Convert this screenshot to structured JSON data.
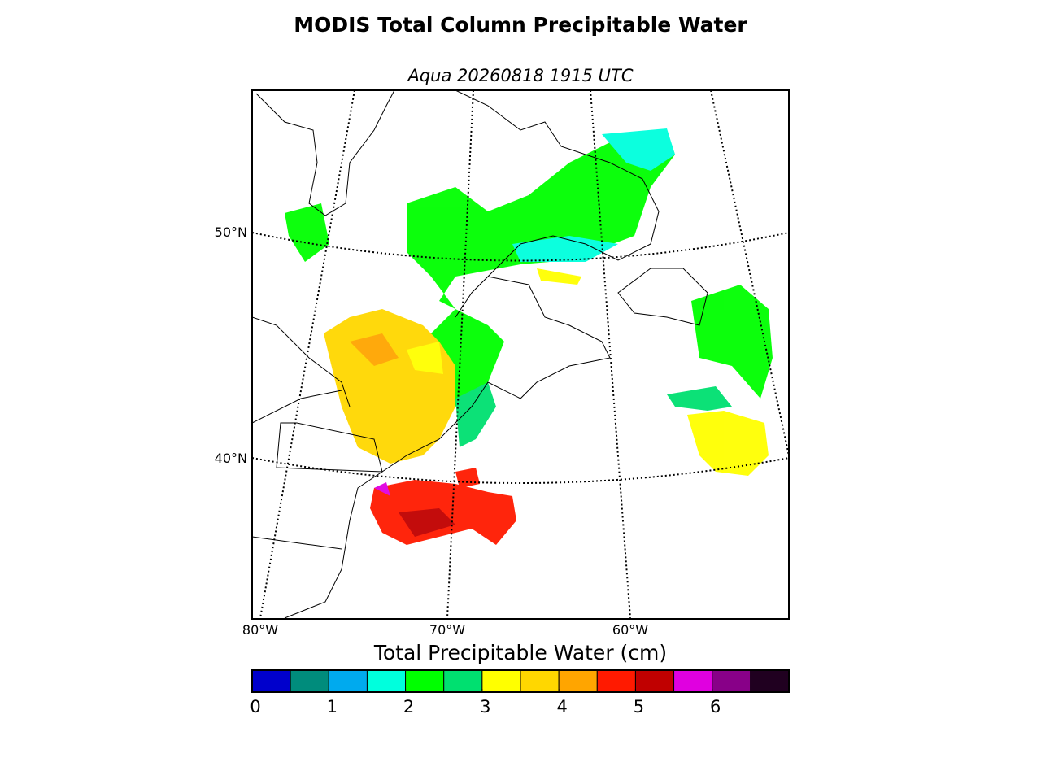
{
  "title": "MODIS Total Column Precipitable Water",
  "subtitle": "Aqua 20260818 1915 UTC",
  "map": {
    "lat_labels": [
      "50°N",
      "40°N"
    ],
    "lon_labels": [
      "80°W",
      "70°W",
      "60°W"
    ]
  },
  "colorbar": {
    "label": "Total Precipitable Water (cm)",
    "range": [
      0,
      7
    ],
    "ticks": [
      0,
      1,
      2,
      3,
      4,
      5,
      6
    ],
    "colors": [
      "#0000cc",
      "#008c7c",
      "#00aaee",
      "#00ffdd",
      "#00ff00",
      "#00e070",
      "#ffff00",
      "#ffd700",
      "#ffa500",
      "#ff1a00",
      "#c00000",
      "#e000e0",
      "#880088",
      "#200020"
    ]
  }
}
